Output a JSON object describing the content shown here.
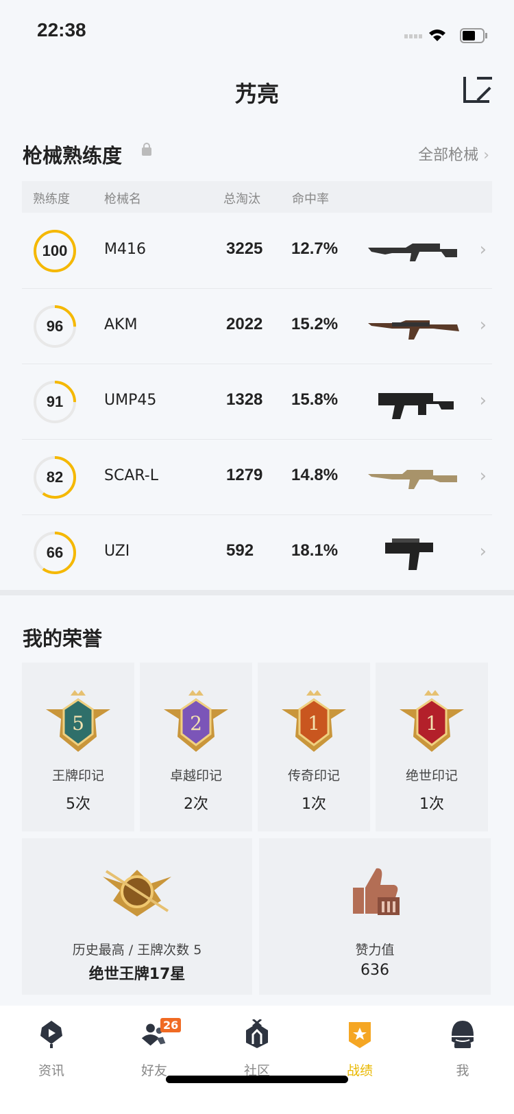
{
  "status": {
    "time": "22:38"
  },
  "header": {
    "title": "艿亮"
  },
  "mastery": {
    "title": "枪械熟练度",
    "all_link": "全部枪械",
    "columns": [
      "熟练度",
      "枪械名",
      "总淘汰",
      "命中率"
    ],
    "rows": [
      {
        "level": "100",
        "progress": 1.0,
        "name": "M416",
        "kills": "3225",
        "rate": "12.7%"
      },
      {
        "level": "96",
        "progress": 0.25,
        "name": "AKM",
        "kills": "2022",
        "rate": "15.2%"
      },
      {
        "level": "91",
        "progress": 0.25,
        "name": "UMP45",
        "kills": "1328",
        "rate": "15.8%"
      },
      {
        "level": "82",
        "progress": 0.6,
        "name": "SCAR-L",
        "kills": "1279",
        "rate": "14.8%"
      },
      {
        "level": "66",
        "progress": 0.6,
        "name": "UZI",
        "kills": "592",
        "rate": "18.1%"
      }
    ]
  },
  "honor": {
    "title": "我的荣誉",
    "marks": [
      {
        "name": "王牌印记",
        "count": "5次",
        "num": "5",
        "color": "#2f6f6a"
      },
      {
        "name": "卓越印记",
        "count": "2次",
        "num": "2",
        "color": "#7b55b8"
      },
      {
        "name": "传奇印记",
        "count": "1次",
        "num": "1",
        "color": "#c9561f"
      },
      {
        "name": "绝世印记",
        "count": "1次",
        "num": "1",
        "color": "#b3202a"
      }
    ],
    "best": {
      "label": "历史最高 / 王牌次数 5",
      "value": "绝世王牌17星"
    },
    "likes": {
      "label": "赞力值",
      "value": "636"
    }
  },
  "tabs": [
    {
      "label": "资讯",
      "icon": "news-icon"
    },
    {
      "label": "好友",
      "icon": "friends-icon",
      "badge": "26"
    },
    {
      "label": "社区",
      "icon": "community-icon"
    },
    {
      "label": "战绩",
      "icon": "record-icon",
      "active": true
    },
    {
      "label": "我",
      "icon": "helmet-icon"
    }
  ],
  "colors": {
    "accent": "#f5b800",
    "ring": "#f5b800",
    "badge": "#f06a23"
  }
}
